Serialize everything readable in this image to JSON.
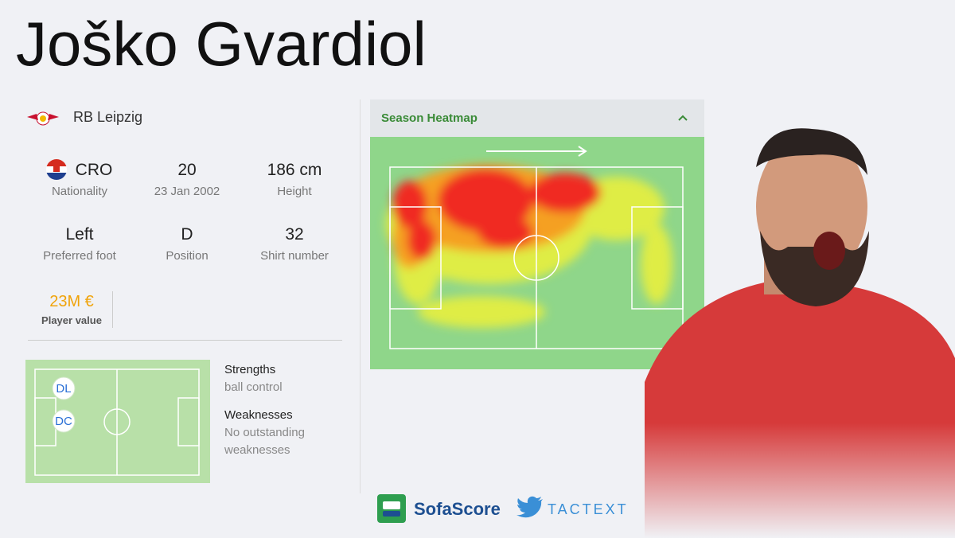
{
  "header": {
    "title": "Joško Gvardiol"
  },
  "club": {
    "name": "RB Leipzig"
  },
  "stats": [
    {
      "value": "CRO",
      "label": "Nationality"
    },
    {
      "value": "20",
      "label": "23 Jan 2002"
    },
    {
      "value": "186 cm",
      "label": "Height"
    },
    {
      "value": "Left",
      "label": "Preferred foot"
    },
    {
      "value": "D",
      "label": "Position"
    },
    {
      "value": "32",
      "label": "Shirt number"
    }
  ],
  "player_value": {
    "value": "23M €",
    "label": "Player value"
  },
  "positions": [
    "DL",
    "DC"
  ],
  "strengths": {
    "heading": "Strengths",
    "text": "ball control"
  },
  "weaknesses": {
    "heading": "Weaknesses",
    "text": "No outstanding weaknesses"
  },
  "heatmap": {
    "title": "Season Heatmap"
  },
  "footer": {
    "brand": "SofaScore",
    "twitter": "TACTEXT"
  }
}
